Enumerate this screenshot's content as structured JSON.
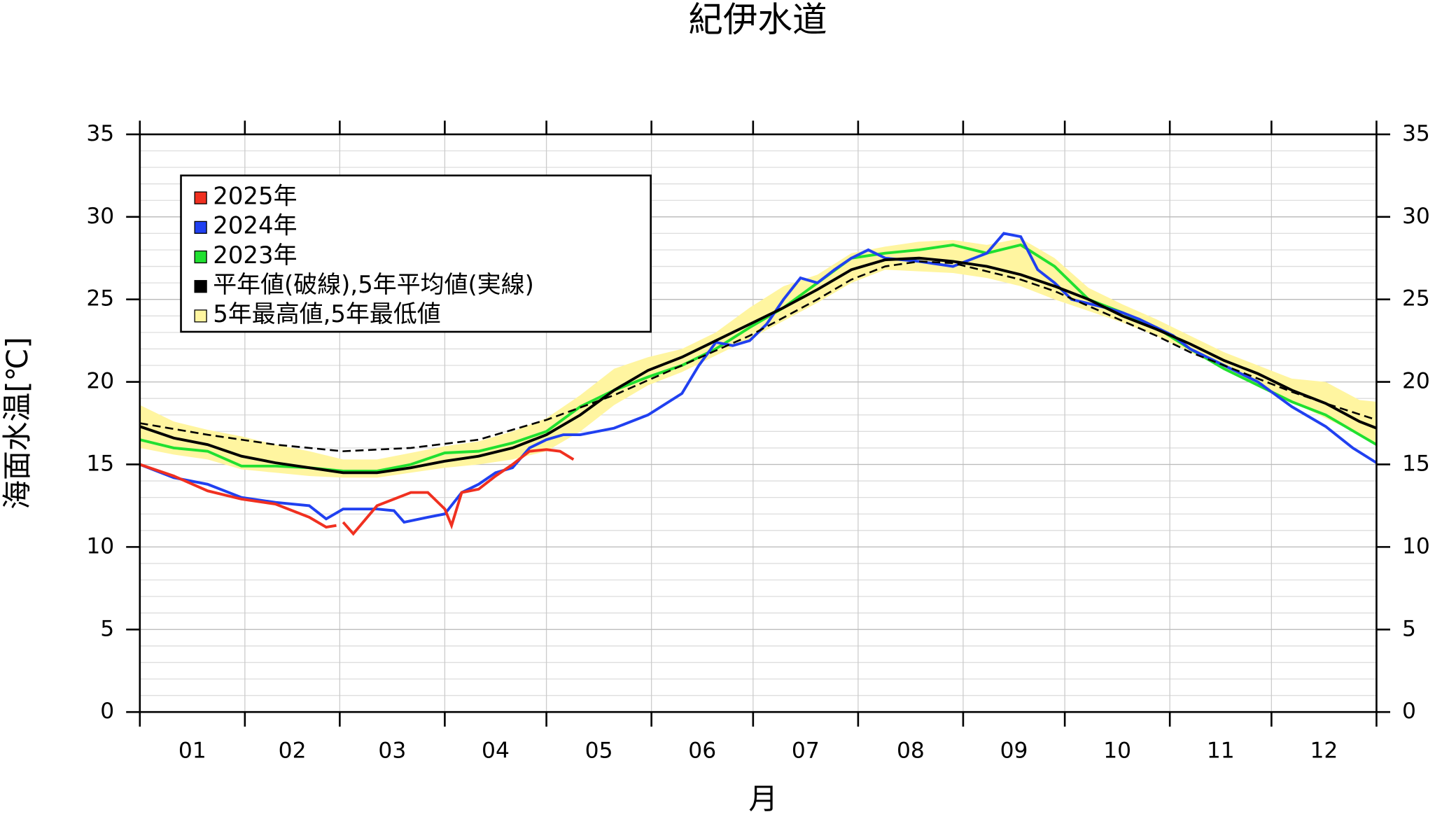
{
  "chart_data": {
    "type": "line",
    "title": "紀伊水道",
    "xlabel": "月",
    "ylabel": "海面水温[℃]",
    "xlim": [
      0,
      365
    ],
    "xticks": [
      0,
      31,
      59,
      90,
      120,
      151,
      181,
      212,
      243,
      273,
      304,
      334,
      365
    ],
    "months": [
      "01",
      "02",
      "03",
      "04",
      "05",
      "06",
      "07",
      "08",
      "09",
      "10",
      "11",
      "12"
    ],
    "ylim": [
      0,
      35
    ],
    "yticks": [
      0,
      5,
      10,
      15,
      20,
      25,
      30,
      35
    ],
    "yminor": 1,
    "grid": true,
    "legend": "upper left",
    "band": {
      "name": "5年最高値,5年最低値",
      "color": "#fff5a0",
      "x": [
        0,
        10,
        20,
        30,
        40,
        50,
        60,
        70,
        80,
        90,
        100,
        110,
        120,
        130,
        140,
        150,
        160,
        170,
        180,
        190,
        200,
        210,
        220,
        230,
        240,
        250,
        260,
        270,
        280,
        290,
        300,
        310,
        320,
        330,
        340,
        350,
        360,
        365
      ],
      "max": [
        18.6,
        17.6,
        17.1,
        16.7,
        16.2,
        15.8,
        15.3,
        15.3,
        15.7,
        16.1,
        16.4,
        17.0,
        17.8,
        19.2,
        20.8,
        21.5,
        22.0,
        23.0,
        24.5,
        25.8,
        26.5,
        27.8,
        28.2,
        28.5,
        28.6,
        28.3,
        28.7,
        27.5,
        25.7,
        24.7,
        23.8,
        22.8,
        21.8,
        21.0,
        20.2,
        20.0,
        18.9,
        18.8
      ],
      "min": [
        16.0,
        15.6,
        15.3,
        14.7,
        14.5,
        14.3,
        14.2,
        14.2,
        14.5,
        14.8,
        15.0,
        15.3,
        15.8,
        17.0,
        18.6,
        19.8,
        20.6,
        21.6,
        22.6,
        23.7,
        24.8,
        26.0,
        26.8,
        26.7,
        26.6,
        26.3,
        25.8,
        25.0,
        24.3,
        23.6,
        22.8,
        21.8,
        20.8,
        19.8,
        18.8,
        17.8,
        16.8,
        16.2
      ]
    },
    "series": [
      {
        "name": "2025年",
        "color": "#f03020",
        "x": [
          0,
          10,
          20,
          30,
          40,
          50,
          55,
          58,
          59.5,
          60,
          63,
          70,
          80,
          85,
          90,
          92,
          95,
          100,
          105,
          110,
          115,
          120,
          124,
          128
        ],
        "values": [
          15.0,
          14.3,
          13.4,
          12.9,
          12.6,
          11.8,
          11.2,
          11.3,
          null,
          11.5,
          10.8,
          12.5,
          13.3,
          13.3,
          12.3,
          11.3,
          13.3,
          13.5,
          14.3,
          15.0,
          15.8,
          15.9,
          15.8,
          15.3
        ]
      },
      {
        "name": "2024年",
        "color": "#2040f0",
        "x": [
          0,
          10,
          20,
          30,
          40,
          50,
          55,
          60,
          70,
          75,
          78,
          85,
          90,
          95,
          100,
          105,
          110,
          115,
          120,
          125,
          130,
          140,
          150,
          160,
          165,
          170,
          175,
          180,
          185,
          190,
          195,
          200,
          205,
          210,
          215,
          220,
          230,
          240,
          250,
          255,
          260,
          265,
          270,
          275,
          285,
          290,
          295,
          300,
          305,
          310,
          320,
          330,
          340,
          350,
          358,
          365
        ],
        "values": [
          15.0,
          14.2,
          13.8,
          13.0,
          12.7,
          12.5,
          11.7,
          12.3,
          12.3,
          12.2,
          11.5,
          11.8,
          12.0,
          13.3,
          13.8,
          14.5,
          14.8,
          16.0,
          16.5,
          16.8,
          16.8,
          17.2,
          18.0,
          19.3,
          21.0,
          22.4,
          22.2,
          22.5,
          23.5,
          25.0,
          26.3,
          26.0,
          26.8,
          27.5,
          28.0,
          27.5,
          27.3,
          27.0,
          27.8,
          29.0,
          28.8,
          26.8,
          26.0,
          25.0,
          24.5,
          24.2,
          23.8,
          23.3,
          22.8,
          22.0,
          21.0,
          20.0,
          18.5,
          17.3,
          16.0,
          15.1
        ]
      },
      {
        "name": "2023年",
        "color": "#20e030",
        "x": [
          0,
          10,
          20,
          30,
          40,
          50,
          60,
          70,
          80,
          90,
          100,
          110,
          120,
          130,
          140,
          150,
          160,
          170,
          180,
          190,
          200,
          210,
          220,
          230,
          240,
          250,
          260,
          270,
          280,
          290,
          300,
          310,
          320,
          330,
          340,
          350,
          360,
          365
        ],
        "values": [
          16.5,
          16.0,
          15.8,
          14.9,
          14.9,
          14.8,
          14.6,
          14.6,
          15.0,
          15.7,
          15.8,
          16.3,
          17.0,
          18.5,
          19.5,
          20.3,
          21.0,
          22.0,
          23.3,
          24.5,
          26.0,
          27.5,
          27.8,
          28.0,
          28.3,
          27.8,
          28.3,
          27.0,
          25.0,
          24.2,
          23.3,
          22.0,
          20.8,
          19.8,
          18.8,
          18.0,
          16.8,
          16.2
        ]
      },
      {
        "color": "#000000",
        "dash": true,
        "x": [
          0,
          20,
          40,
          60,
          80,
          100,
          120,
          140,
          160,
          180,
          200,
          210,
          220,
          230,
          240,
          250,
          260,
          270,
          280,
          290,
          300,
          310,
          320,
          330,
          340,
          350,
          365
        ],
        "values": [
          17.5,
          16.8,
          16.2,
          15.8,
          16.0,
          16.5,
          17.7,
          19.2,
          21.0,
          22.8,
          25.0,
          26.2,
          27.0,
          27.3,
          27.2,
          26.7,
          26.2,
          25.5,
          24.6,
          23.7,
          22.8,
          21.8,
          21.0,
          20.2,
          19.4,
          18.7,
          17.7
        ]
      },
      {
        "name": "平年値(破線),5年平均値(実線)",
        "color": "#000000",
        "x": [
          0,
          10,
          20,
          30,
          40,
          50,
          60,
          70,
          80,
          90,
          100,
          110,
          120,
          130,
          140,
          150,
          160,
          170,
          180,
          190,
          200,
          210,
          220,
          230,
          240,
          250,
          260,
          270,
          280,
          290,
          300,
          310,
          320,
          330,
          340,
          350,
          360,
          365
        ],
        "values": [
          17.3,
          16.6,
          16.2,
          15.5,
          15.1,
          14.8,
          14.5,
          14.5,
          14.8,
          15.2,
          15.5,
          16.0,
          16.8,
          18.0,
          19.5,
          20.7,
          21.5,
          22.5,
          23.5,
          24.5,
          25.6,
          26.8,
          27.4,
          27.5,
          27.3,
          27.0,
          26.5,
          25.8,
          25.0,
          24.0,
          23.2,
          22.3,
          21.3,
          20.5,
          19.5,
          18.7,
          17.6,
          17.2
        ]
      }
    ]
  }
}
